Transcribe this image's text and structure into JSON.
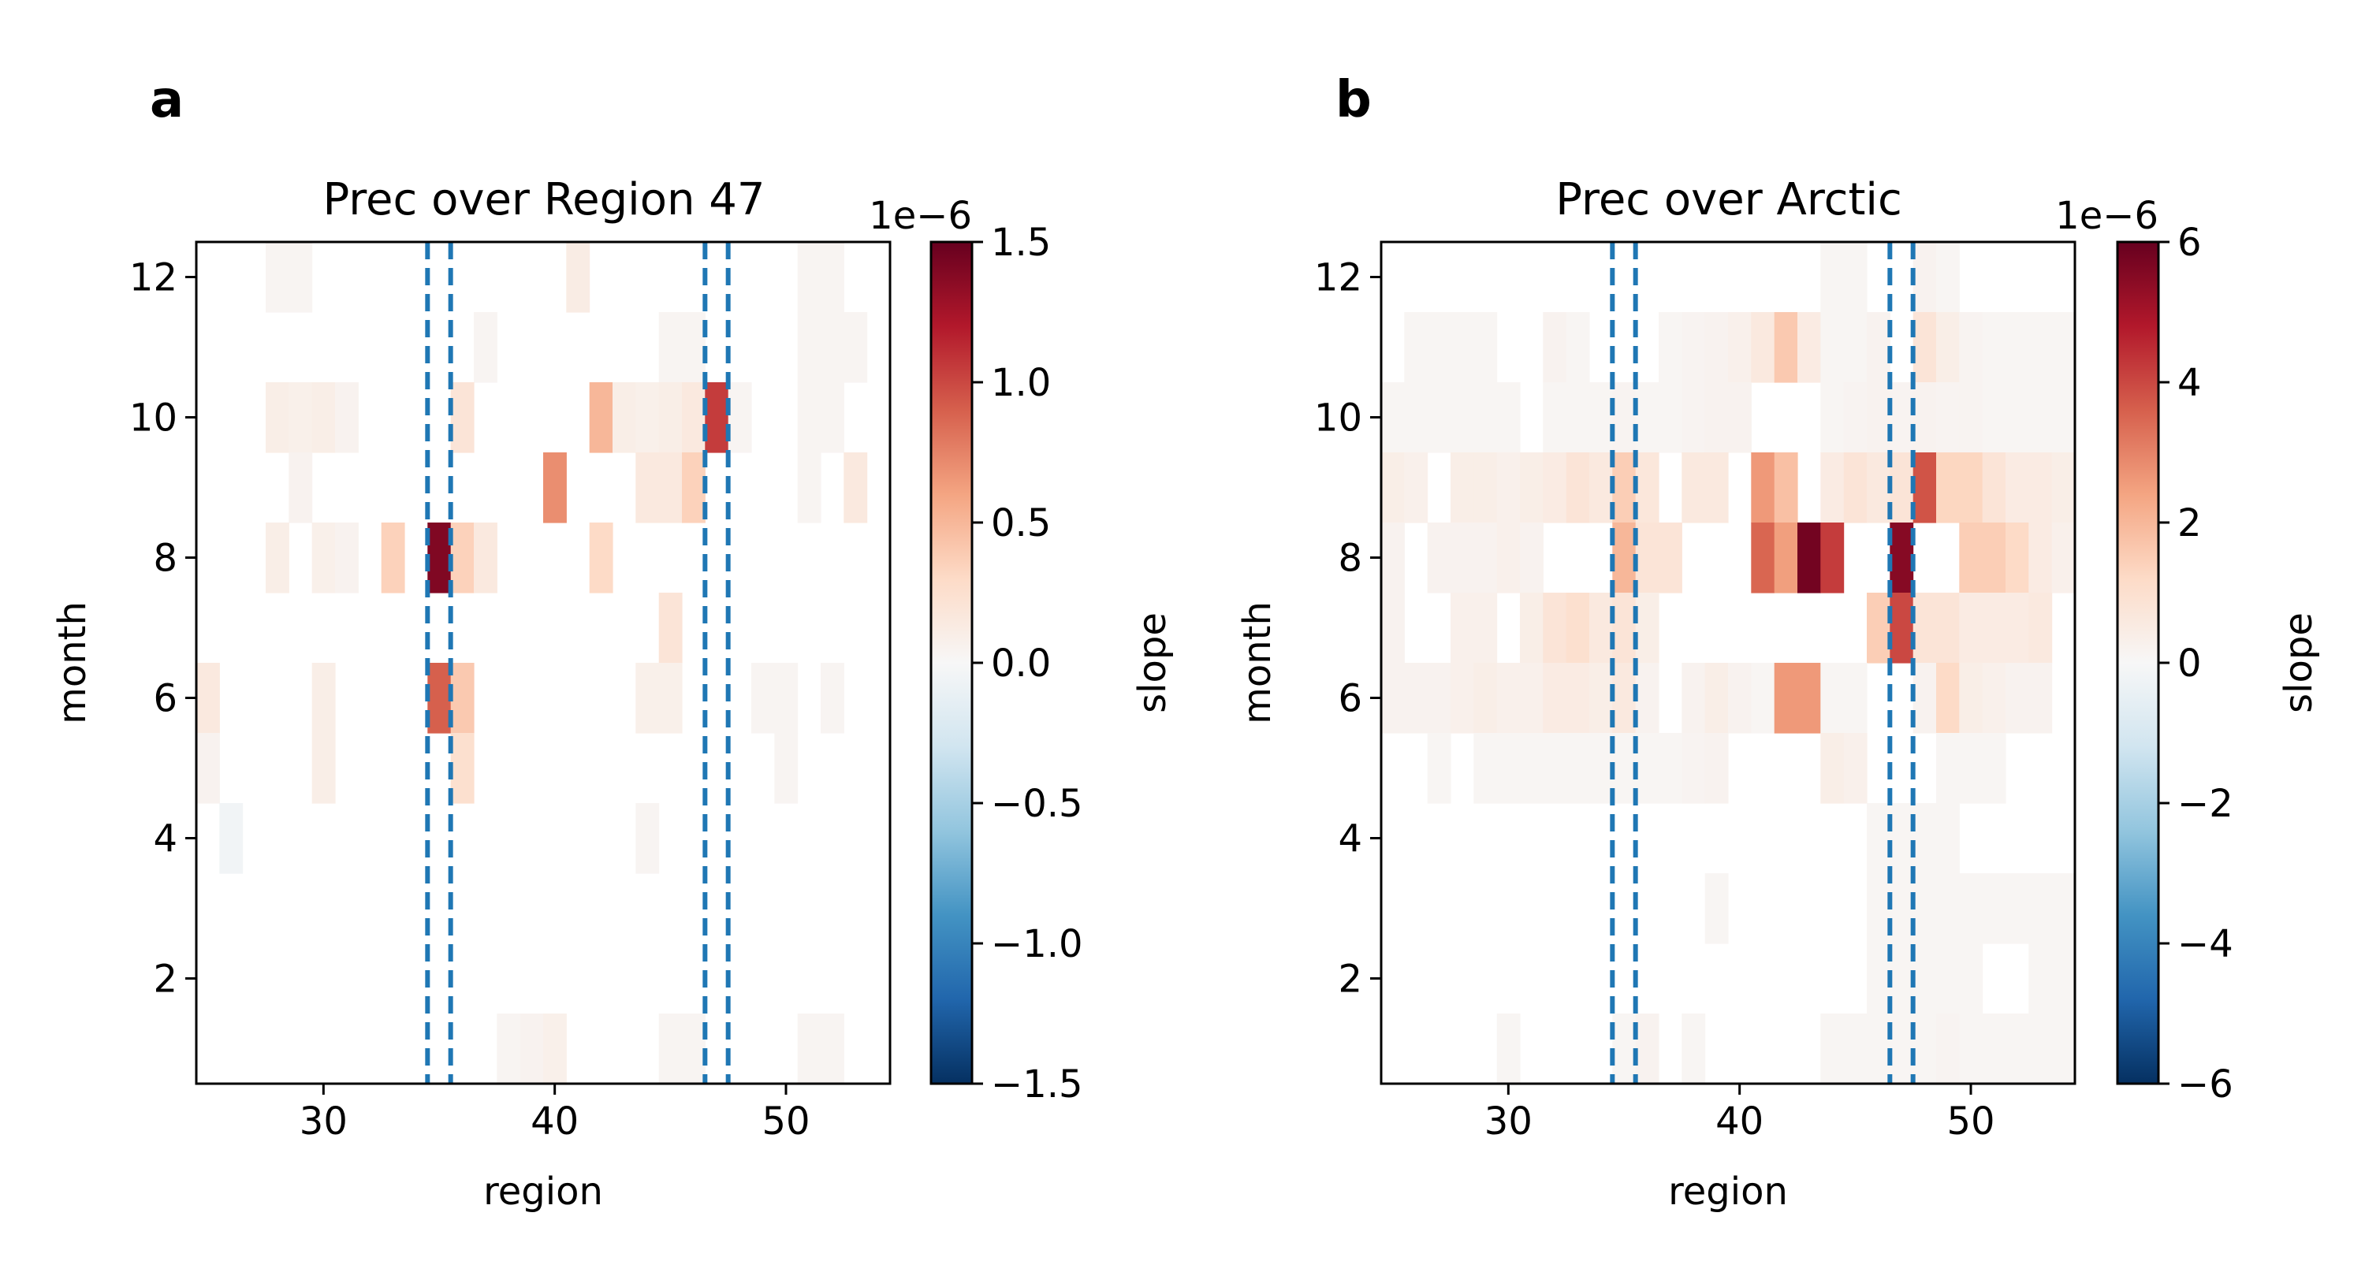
{
  "chart_data": [
    {
      "type": "heatmap",
      "panel_label": "a",
      "title": "Prec over Region 47",
      "xlabel": "region",
      "ylabel": "month",
      "xlim": [
        24.5,
        54.5
      ],
      "ylim": [
        0.5,
        12.5
      ],
      "x_ticks": [
        30,
        40,
        50
      ],
      "y_ticks": [
        2,
        4,
        6,
        8,
        10,
        12
      ],
      "colorbar": {
        "label": "slope",
        "offset_text": "1e−6",
        "range": [
          -1.5,
          1.5
        ],
        "ticks": [
          -1.5,
          -1.0,
          -0.5,
          0.0,
          0.5,
          1.0,
          1.5
        ],
        "tick_labels": [
          "−1.5",
          "−1.0",
          "−0.5",
          "0.0",
          "0.5",
          "1.0",
          "1.5"
        ],
        "colormap": "RdBu_r"
      },
      "dashed_lines_x": [
        34.5,
        35.5,
        46.5,
        47.5
      ],
      "dashed_line_color": "#1f77b4",
      "cells": [
        [
          28,
          12,
          0.03
        ],
        [
          29,
          12,
          0.03
        ],
        [
          41,
          12,
          0.12
        ],
        [
          51,
          12,
          0.03
        ],
        [
          52,
          12,
          0.03
        ],
        [
          37,
          11,
          0.03
        ],
        [
          45,
          11,
          0.03
        ],
        [
          46,
          11,
          0.03
        ],
        [
          51,
          11,
          0.03
        ],
        [
          52,
          11,
          0.03
        ],
        [
          53,
          11,
          0.03
        ],
        [
          28,
          10,
          0.1
        ],
        [
          29,
          10,
          0.08
        ],
        [
          30,
          10,
          0.1
        ],
        [
          31,
          10,
          0.05
        ],
        [
          36,
          10,
          0.2
        ],
        [
          42,
          10,
          0.5
        ],
        [
          43,
          10,
          0.1
        ],
        [
          44,
          10,
          0.08
        ],
        [
          45,
          10,
          0.1
        ],
        [
          46,
          10,
          0.15
        ],
        [
          47,
          10,
          1.05
        ],
        [
          48,
          10,
          0.03
        ],
        [
          51,
          10,
          0.03
        ],
        [
          52,
          10,
          0.03
        ],
        [
          29,
          9,
          0.05
        ],
        [
          40,
          9,
          0.7
        ],
        [
          44,
          9,
          0.15
        ],
        [
          45,
          9,
          0.15
        ],
        [
          46,
          9,
          0.35
        ],
        [
          51,
          9,
          0.03
        ],
        [
          53,
          9,
          0.15
        ],
        [
          28,
          8,
          0.1
        ],
        [
          30,
          8,
          0.08
        ],
        [
          31,
          8,
          0.05
        ],
        [
          33,
          8,
          0.35
        ],
        [
          35,
          8,
          1.4
        ],
        [
          36,
          8,
          0.35
        ],
        [
          37,
          8,
          0.15
        ],
        [
          42,
          8,
          0.3
        ],
        [
          45,
          7,
          0.2
        ],
        [
          25,
          6,
          0.15
        ],
        [
          30,
          6,
          0.1
        ],
        [
          35,
          6,
          0.9
        ],
        [
          36,
          6,
          0.4
        ],
        [
          44,
          6,
          0.08
        ],
        [
          45,
          6,
          0.08
        ],
        [
          49,
          6,
          0.03
        ],
        [
          50,
          6,
          0.03
        ],
        [
          52,
          6,
          0.03
        ],
        [
          25,
          5,
          0.05
        ],
        [
          30,
          5,
          0.1
        ],
        [
          36,
          5,
          0.25
        ],
        [
          50,
          5,
          0.03
        ],
        [
          26,
          4,
          -0.05
        ],
        [
          44,
          4,
          0.03
        ],
        [
          38,
          1,
          0.03
        ],
        [
          39,
          1,
          0.05
        ],
        [
          40,
          1,
          0.08
        ],
        [
          45,
          1,
          0.03
        ],
        [
          46,
          1,
          0.03
        ],
        [
          51,
          1,
          0.03
        ],
        [
          52,
          1,
          0.03
        ]
      ]
    },
    {
      "type": "heatmap",
      "panel_label": "b",
      "title": "Prec over Arctic",
      "xlabel": "region",
      "ylabel": "month",
      "xlim": [
        24.5,
        54.5
      ],
      "ylim": [
        0.5,
        12.5
      ],
      "x_ticks": [
        30,
        40,
        50
      ],
      "y_ticks": [
        2,
        4,
        6,
        8,
        10,
        12
      ],
      "colorbar": {
        "label": "slope",
        "offset_text": "1e−6",
        "range": [
          -6,
          6
        ],
        "ticks": [
          -6,
          -4,
          -2,
          0,
          2,
          4,
          6
        ],
        "tick_labels": [
          "−6",
          "−4",
          "−2",
          "0",
          "2",
          "4",
          "6"
        ],
        "colormap": "RdBu_r"
      },
      "dashed_lines_x": [
        34.5,
        35.5,
        46.5,
        47.5
      ],
      "dashed_line_color": "#1f77b4",
      "cells": [
        [
          44,
          12,
          0.1
        ],
        [
          45,
          12,
          0.1
        ],
        [
          48,
          12,
          0.2
        ],
        [
          49,
          12,
          0.1
        ],
        [
          26,
          11,
          0.1
        ],
        [
          27,
          11,
          0.1
        ],
        [
          28,
          11,
          0.1
        ],
        [
          29,
          11,
          0.1
        ],
        [
          32,
          11,
          0.2
        ],
        [
          33,
          11,
          0.1
        ],
        [
          37,
          11,
          0.1
        ],
        [
          38,
          11,
          0.15
        ],
        [
          39,
          11,
          0.2
        ],
        [
          40,
          11,
          0.3
        ],
        [
          41,
          11,
          0.6
        ],
        [
          42,
          11,
          1.6
        ],
        [
          43,
          11,
          0.5
        ],
        [
          44,
          11,
          0.1
        ],
        [
          45,
          11,
          0.1
        ],
        [
          46,
          11,
          0.2
        ],
        [
          48,
          11,
          0.8
        ],
        [
          49,
          11,
          0.4
        ],
        [
          50,
          11,
          0.15
        ],
        [
          51,
          11,
          0.1
        ],
        [
          52,
          11,
          0.1
        ],
        [
          53,
          11,
          0.1
        ],
        [
          54,
          11,
          0.1
        ],
        [
          25,
          10,
          0.1
        ],
        [
          26,
          10,
          0.1
        ],
        [
          27,
          10,
          0.1
        ],
        [
          28,
          10,
          0.1
        ],
        [
          29,
          10,
          0.1
        ],
        [
          30,
          10,
          0.1
        ],
        [
          32,
          10,
          0.1
        ],
        [
          33,
          10,
          0.1
        ],
        [
          34,
          10,
          0.1
        ],
        [
          35,
          10,
          0.15
        ],
        [
          36,
          10,
          0.1
        ],
        [
          37,
          10,
          0.1
        ],
        [
          38,
          10,
          0.15
        ],
        [
          39,
          10,
          0.2
        ],
        [
          40,
          10,
          0.2
        ],
        [
          44,
          10,
          0.1
        ],
        [
          45,
          10,
          0.15
        ],
        [
          46,
          10,
          0.2
        ],
        [
          47,
          10,
          0.15
        ],
        [
          48,
          10,
          0.2
        ],
        [
          49,
          10,
          0.15
        ],
        [
          50,
          10,
          0.15
        ],
        [
          51,
          10,
          0.1
        ],
        [
          52,
          10,
          0.1
        ],
        [
          53,
          10,
          0.1
        ],
        [
          54,
          10,
          0.1
        ],
        [
          25,
          9,
          0.4
        ],
        [
          26,
          9,
          0.3
        ],
        [
          28,
          9,
          0.4
        ],
        [
          29,
          9,
          0.4
        ],
        [
          30,
          9,
          0.3
        ],
        [
          31,
          9,
          0.4
        ],
        [
          32,
          9,
          0.5
        ],
        [
          33,
          9,
          0.8
        ],
        [
          34,
          9,
          0.6
        ],
        [
          35,
          9,
          1.5
        ],
        [
          36,
          9,
          0.7
        ],
        [
          38,
          9,
          0.6
        ],
        [
          39,
          9,
          0.6
        ],
        [
          41,
          9,
          2.6
        ],
        [
          42,
          9,
          1.8
        ],
        [
          44,
          9,
          0.5
        ],
        [
          45,
          9,
          0.8
        ],
        [
          46,
          9,
          0.6
        ],
        [
          47,
          9,
          0.8
        ],
        [
          48,
          9,
          3.8
        ],
        [
          49,
          9,
          1.3
        ],
        [
          50,
          9,
          1.3
        ],
        [
          51,
          9,
          0.8
        ],
        [
          52,
          9,
          0.5
        ],
        [
          53,
          9,
          0.5
        ],
        [
          54,
          9,
          0.4
        ],
        [
          25,
          8,
          0.2
        ],
        [
          27,
          8,
          0.2
        ],
        [
          28,
          8,
          0.2
        ],
        [
          29,
          8,
          0.2
        ],
        [
          30,
          8,
          0.3
        ],
        [
          31,
          8,
          0.2
        ],
        [
          35,
          8,
          2.0
        ],
        [
          36,
          8,
          0.8
        ],
        [
          37,
          8,
          0.8
        ],
        [
          41,
          8,
          3.5
        ],
        [
          42,
          8,
          2.5
        ],
        [
          43,
          8,
          5.8
        ],
        [
          44,
          8,
          4.2
        ],
        [
          47,
          8,
          5.5
        ],
        [
          50,
          8,
          1.5
        ],
        [
          51,
          8,
          1.5
        ],
        [
          52,
          8,
          1.2
        ],
        [
          53,
          8,
          0.5
        ],
        [
          54,
          8,
          0.3
        ],
        [
          25,
          7,
          0.2
        ],
        [
          28,
          7,
          0.3
        ],
        [
          29,
          7,
          0.3
        ],
        [
          31,
          7,
          0.4
        ],
        [
          32,
          7,
          0.8
        ],
        [
          33,
          7,
          1.0
        ],
        [
          34,
          7,
          0.6
        ],
        [
          35,
          7,
          0.8
        ],
        [
          36,
          7,
          0.4
        ],
        [
          46,
          7,
          1.5
        ],
        [
          47,
          7,
          4.0
        ],
        [
          48,
          7,
          0.8
        ],
        [
          49,
          7,
          0.8
        ],
        [
          50,
          7,
          0.5
        ],
        [
          51,
          7,
          0.5
        ],
        [
          52,
          7,
          0.5
        ],
        [
          53,
          7,
          0.6
        ],
        [
          25,
          6,
          0.2
        ],
        [
          26,
          6,
          0.2
        ],
        [
          27,
          6,
          0.2
        ],
        [
          28,
          6,
          0.3
        ],
        [
          29,
          6,
          0.4
        ],
        [
          30,
          6,
          0.3
        ],
        [
          31,
          6,
          0.3
        ],
        [
          32,
          6,
          0.5
        ],
        [
          33,
          6,
          0.5
        ],
        [
          34,
          6,
          0.4
        ],
        [
          35,
          6,
          0.6
        ],
        [
          36,
          6,
          0.2
        ],
        [
          38,
          6,
          0.2
        ],
        [
          39,
          6,
          0.4
        ],
        [
          40,
          6,
          0.2
        ],
        [
          41,
          6,
          0.1
        ],
        [
          42,
          6,
          2.6
        ],
        [
          43,
          6,
          2.6
        ],
        [
          44,
          6,
          0.1
        ],
        [
          45,
          6,
          0.1
        ],
        [
          48,
          6,
          0.2
        ],
        [
          49,
          6,
          1.2
        ],
        [
          50,
          6,
          0.4
        ],
        [
          51,
          6,
          0.3
        ],
        [
          52,
          6,
          0.2
        ],
        [
          53,
          6,
          0.2
        ],
        [
          27,
          5,
          0.1
        ],
        [
          29,
          5,
          0.1
        ],
        [
          30,
          5,
          0.1
        ],
        [
          31,
          5,
          0.1
        ],
        [
          32,
          5,
          0.1
        ],
        [
          33,
          5,
          0.1
        ],
        [
          34,
          5,
          0.1
        ],
        [
          35,
          5,
          0.1
        ],
        [
          36,
          5,
          0.1
        ],
        [
          37,
          5,
          0.1
        ],
        [
          38,
          5,
          0.15
        ],
        [
          39,
          5,
          0.2
        ],
        [
          44,
          5,
          0.4
        ],
        [
          45,
          5,
          0.3
        ],
        [
          49,
          5,
          0.1
        ],
        [
          50,
          5,
          0.1
        ],
        [
          51,
          5,
          0.1
        ],
        [
          46,
          4,
          0.1
        ],
        [
          47,
          4,
          0.1
        ],
        [
          48,
          4,
          0.1
        ],
        [
          49,
          4,
          0.1
        ],
        [
          39,
          3,
          0.1
        ],
        [
          46,
          3,
          0.1
        ],
        [
          47,
          3,
          0.1
        ],
        [
          48,
          3,
          0.1
        ],
        [
          49,
          3,
          0.1
        ],
        [
          50,
          3,
          0.1
        ],
        [
          51,
          3,
          0.1
        ],
        [
          52,
          3,
          0.1
        ],
        [
          53,
          3,
          0.1
        ],
        [
          54,
          3,
          0.1
        ],
        [
          46,
          2,
          0.1
        ],
        [
          47,
          2,
          0.1
        ],
        [
          48,
          2,
          0.1
        ],
        [
          49,
          2,
          0.1
        ],
        [
          50,
          2,
          0.1
        ],
        [
          53,
          2,
          0.1
        ],
        [
          54,
          2,
          0.1
        ],
        [
          30,
          1,
          0.1
        ],
        [
          35,
          1,
          0.1
        ],
        [
          36,
          1,
          0.2
        ],
        [
          38,
          1,
          0.1
        ],
        [
          44,
          1,
          0.1
        ],
        [
          45,
          1,
          0.1
        ],
        [
          46,
          1,
          0.1
        ],
        [
          47,
          1,
          0.1
        ],
        [
          48,
          1,
          0.1
        ],
        [
          49,
          1,
          0.15
        ],
        [
          50,
          1,
          0.1
        ],
        [
          51,
          1,
          0.1
        ],
        [
          52,
          1,
          0.1
        ],
        [
          53,
          1,
          0.1
        ],
        [
          54,
          1,
          0.1
        ]
      ]
    }
  ]
}
